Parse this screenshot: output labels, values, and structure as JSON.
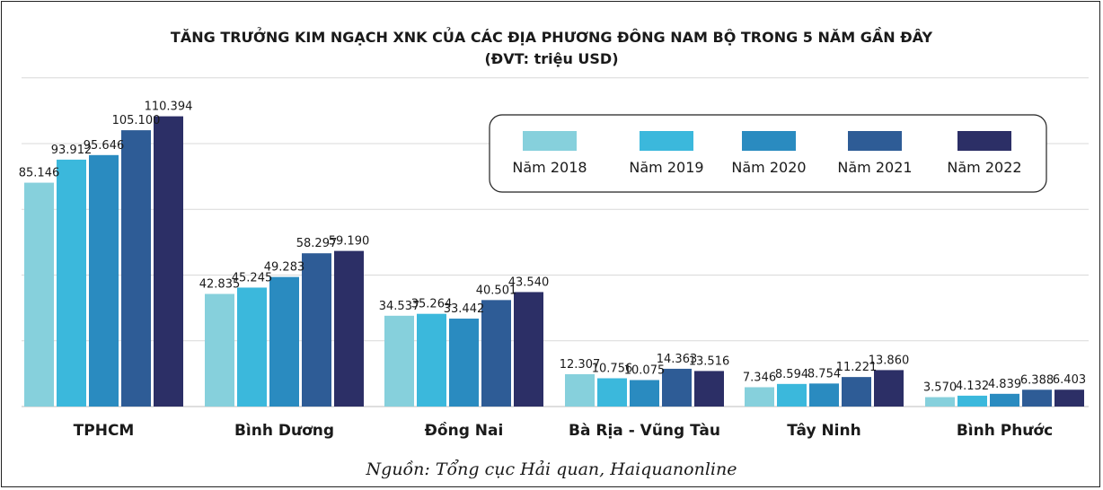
{
  "chart_data": {
    "type": "bar",
    "title": "TĂNG TRƯỞNG KIM NGẠCH XNK CỦA CÁC ĐỊA PHƯƠNG ĐÔNG NAM BỘ TRONG 5 NĂM GẦN ĐÂY",
    "subtitle": "(ĐVT: triệu USD)",
    "categories": [
      "TPHCM",
      "Bình Dương",
      "Đồng Nai",
      "Bà Rịa - Vũng Tàu",
      "Tây Ninh",
      "Bình Phước"
    ],
    "series": [
      {
        "name": "Năm 2018",
        "values": [
          85.146,
          42.835,
          34.537,
          12.307,
          7.346,
          3.57
        ],
        "labels": [
          "85.146",
          "42.835",
          "34.537",
          "12.307",
          "7.346",
          "3.570"
        ]
      },
      {
        "name": "Năm 2019",
        "values": [
          93.912,
          45.245,
          35.264,
          10.756,
          8.594,
          4.132
        ],
        "labels": [
          "93.912",
          "45.245",
          "35.264",
          "10.756",
          "8.594",
          "4.132"
        ]
      },
      {
        "name": "Năm 2020",
        "values": [
          95.646,
          49.283,
          33.442,
          10.075,
          8.754,
          4.839
        ],
        "labels": [
          "95.646",
          "49.283",
          "33.442",
          "10.075",
          "8.754",
          "4.839"
        ]
      },
      {
        "name": "Năm 2021",
        "values": [
          105.1,
          58.297,
          40.501,
          14.363,
          11.221,
          6.388
        ],
        "labels": [
          "105.100",
          "58.297",
          "40.501",
          "14.363",
          "11.221",
          "6.388"
        ]
      },
      {
        "name": "Năm 2022",
        "values": [
          110.394,
          59.19,
          43.54,
          13.516,
          13.86,
          6.403
        ],
        "labels": [
          "110.394",
          "59.190",
          "43.540",
          "13.516",
          "13.860",
          "6.403"
        ]
      }
    ],
    "colors": [
      "#86d0dc",
      "#3bb8dc",
      "#2a8bc0",
      "#2e5c96",
      "#2c2f66"
    ],
    "ylim": [
      0,
      120
    ],
    "grid": true,
    "legend_position": "top-right",
    "source": "Nguồn: Tổng cục Hải quan, Haiquanonline"
  }
}
